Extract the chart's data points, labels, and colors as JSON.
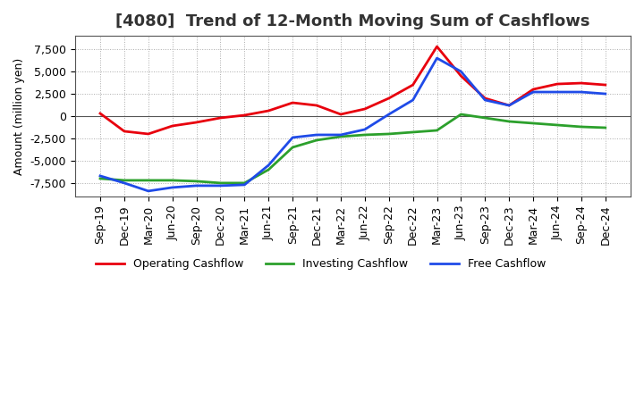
{
  "title": "[4080]  Trend of 12-Month Moving Sum of Cashflows",
  "ylabel": "Amount (million yen)",
  "x_labels": [
    "Sep-19",
    "Dec-19",
    "Mar-20",
    "Jun-20",
    "Sep-20",
    "Dec-20",
    "Mar-21",
    "Jun-21",
    "Sep-21",
    "Dec-21",
    "Mar-22",
    "Jun-22",
    "Sep-22",
    "Dec-22",
    "Mar-23",
    "Jun-23",
    "Sep-23",
    "Dec-23",
    "Mar-24",
    "Jun-24",
    "Sep-24",
    "Dec-24"
  ],
  "operating": [
    300,
    -1700,
    -2000,
    -1100,
    -700,
    -200,
    100,
    600,
    1500,
    1200,
    200,
    800,
    2000,
    3500,
    7800,
    4500,
    2000,
    1200,
    3000,
    3600,
    3700,
    3500
  ],
  "investing": [
    -7000,
    -7200,
    -7200,
    -7200,
    -7300,
    -7500,
    -7500,
    -6000,
    -3500,
    -2700,
    -2300,
    -2100,
    -2000,
    -1800,
    -1600,
    200,
    -200,
    -600,
    -800,
    -1000,
    -1200,
    -1300
  ],
  "free": [
    -6700,
    -7500,
    -8400,
    -8000,
    -7800,
    -7800,
    -7700,
    -5500,
    -2400,
    -2100,
    -2100,
    -1500,
    200,
    1800,
    6500,
    5000,
    1800,
    1200,
    2700,
    2700,
    2700,
    2500
  ],
  "ylim": [
    -9000,
    9000
  ],
  "yticks": [
    -7500,
    -5000,
    -2500,
    0,
    2500,
    5000,
    7500
  ],
  "operating_color": "#e8000d",
  "investing_color": "#2ca02c",
  "free_color": "#1f4be8",
  "background_color": "#ffffff",
  "grid_color": "#aaaaaa",
  "title_color": "#333333",
  "linewidth": 2.0,
  "title_fontsize": 13,
  "axis_fontsize": 9,
  "tick_fontsize": 9,
  "legend_labels": [
    "Operating Cashflow",
    "Investing Cashflow",
    "Free Cashflow"
  ]
}
